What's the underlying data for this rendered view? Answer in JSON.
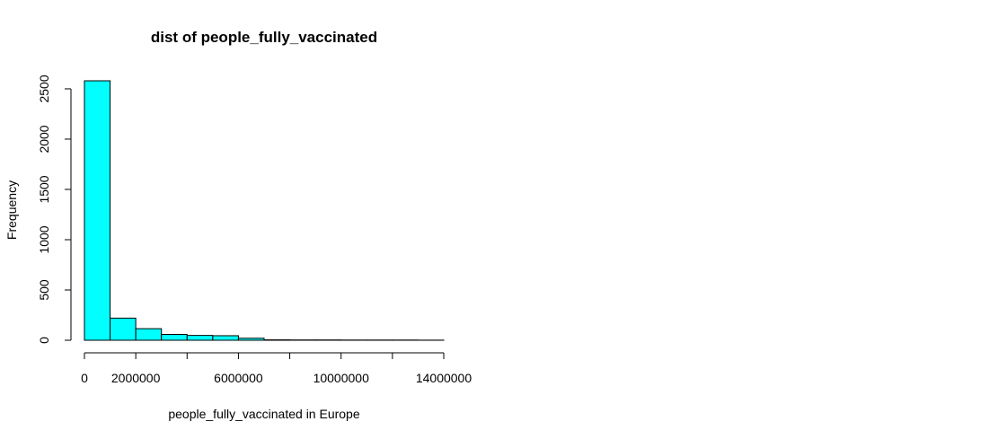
{
  "chart_data": {
    "type": "bar",
    "title": "dist of people_fully_vaccinated",
    "xlabel": "people_fully_vaccinated in Europe",
    "ylabel": "Frequency",
    "bin_width": 1000000,
    "bins": [
      {
        "start": 0,
        "end": 1000000,
        "count": 2580
      },
      {
        "start": 1000000,
        "end": 2000000,
        "count": 220
      },
      {
        "start": 2000000,
        "end": 3000000,
        "count": 115
      },
      {
        "start": 3000000,
        "end": 4000000,
        "count": 58
      },
      {
        "start": 4000000,
        "end": 5000000,
        "count": 48
      },
      {
        "start": 5000000,
        "end": 6000000,
        "count": 45
      },
      {
        "start": 6000000,
        "end": 7000000,
        "count": 20
      },
      {
        "start": 7000000,
        "end": 8000000,
        "count": 4
      },
      {
        "start": 8000000,
        "end": 9000000,
        "count": 3
      },
      {
        "start": 9000000,
        "end": 10000000,
        "count": 3
      },
      {
        "start": 10000000,
        "end": 11000000,
        "count": 2
      },
      {
        "start": 11000000,
        "end": 12000000,
        "count": 2
      },
      {
        "start": 12000000,
        "end": 13000000,
        "count": 2
      },
      {
        "start": 13000000,
        "end": 14000000,
        "count": 1
      }
    ],
    "xlim": [
      0,
      14000000
    ],
    "ylim": [
      0,
      2580
    ],
    "x_ticks": [
      0,
      2000000,
      4000000,
      6000000,
      8000000,
      10000000,
      12000000,
      14000000
    ],
    "x_tick_labels": [
      "0",
      "2000000",
      "",
      "6000000",
      "",
      "10000000",
      "",
      "14000000"
    ],
    "y_ticks": [
      0,
      500,
      1000,
      1500,
      2000,
      2500
    ],
    "y_tick_labels": [
      "0",
      "500",
      "1000",
      "1500",
      "2000",
      "2500"
    ],
    "bar_color": "#00FFFF",
    "bar_border_color": "#000000",
    "grid": false,
    "legend": "none"
  }
}
